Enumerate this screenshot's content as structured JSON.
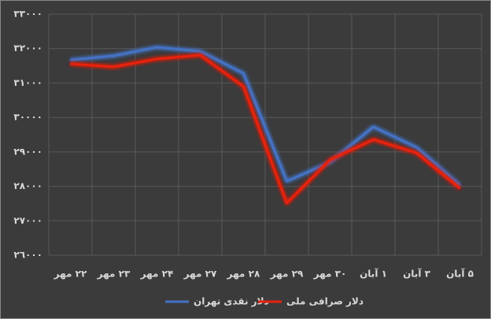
{
  "chart_data": {
    "type": "line",
    "categories": [
      "۲۲ مهر",
      "۲۳ مهر",
      "۲۴ مهر",
      "۲۷ مهر",
      "۲۸ مهر",
      "۲۹ مهر",
      "۳۰ مهر",
      "۱ آبان",
      "۳ آبان",
      "۵ آبان"
    ],
    "series": [
      {
        "name": "دلار نقدی تهران",
        "color": "#4472c4",
        "values": [
          31670,
          31790,
          32040,
          31920,
          31280,
          28150,
          28700,
          29730,
          29130,
          28030
        ]
      },
      {
        "name": "دلار صرافی ملی",
        "color": "#e8200c",
        "values": [
          31560,
          31470,
          31700,
          31810,
          30900,
          27510,
          28770,
          29360,
          28970,
          27940
        ]
      }
    ],
    "ylim": [
      26000,
      33000
    ],
    "yticks": [
      {
        "value": 26000,
        "label": "٢٦٠٠٠"
      },
      {
        "value": 27000,
        "label": "٢٧٠٠٠"
      },
      {
        "value": 28000,
        "label": "٢٨٠٠٠"
      },
      {
        "value": 29000,
        "label": "٢٩٠٠٠"
      },
      {
        "value": 30000,
        "label": "٣٠٠٠٠"
      },
      {
        "value": 31000,
        "label": "٣١٠٠٠"
      },
      {
        "value": 32000,
        "label": "٣٢٠٠٠"
      },
      {
        "value": 33000,
        "label": "٣٣٠٠٠"
      }
    ],
    "grid": true
  }
}
